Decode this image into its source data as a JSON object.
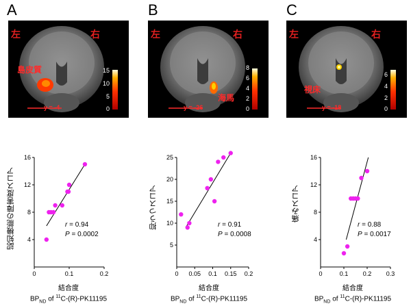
{
  "panels": [
    {
      "letter": "A",
      "left_label": "左",
      "right_label": "右",
      "region": "島皮質",
      "coord": "y = -4",
      "colorbar_ticks": [
        "15",
        "10",
        "5",
        "0"
      ],
      "ylabel": "認知機能の障害度スコア",
      "xlabel": "結合度",
      "xlabel_bp": "BP",
      "xlabel_sub": "ND",
      "xlabel_mid": " of ",
      "xlabel_sup": "11",
      "xlabel_tracer": "C-(R)-PK11195",
      "r_label": "r",
      "r_value": " = 0.94",
      "p_label": "P",
      "p_value": " = 0.0002"
    },
    {
      "letter": "B",
      "left_label": "左",
      "right_label": "右",
      "region": "海馬",
      "coord": "y = -26",
      "colorbar_ticks": [
        "8",
        "6",
        "4",
        "2",
        "0"
      ],
      "ylabel": "抑うつスコア",
      "xlabel": "結合度",
      "xlabel_bp": "BP",
      "xlabel_sub": "ND",
      "xlabel_mid": " of ",
      "xlabel_sup": "11",
      "xlabel_tracer": "C-(R)-PK11195",
      "r_label": "r",
      "r_value": " = 0.91",
      "p_label": "P",
      "p_value": " = 0.0008"
    },
    {
      "letter": "C",
      "left_label": "左",
      "right_label": "右",
      "region": "視床",
      "coord": "y = -18",
      "colorbar_ticks": [
        "6",
        "4",
        "2",
        "0"
      ],
      "ylabel": "痛みスコア",
      "xlabel": "結合度",
      "xlabel_bp": "BP",
      "xlabel_sub": "ND",
      "xlabel_mid": " of ",
      "xlabel_sup": "11",
      "xlabel_tracer": "C-(R)-PK11195",
      "r_label": "r",
      "r_value": " = 0.88",
      "p_label": "P",
      "p_value": " = 0.0017"
    }
  ],
  "colors": {
    "point": "#ee22ee",
    "label_red": "#e02020"
  },
  "chart_data": [
    {
      "type": "scatter",
      "title": "",
      "xlabel": "結合度 BPND of 11C-(R)-PK11195",
      "ylabel": "認知機能の障害度スコア",
      "xlim": [
        0,
        0.2
      ],
      "ylim": [
        0,
        16
      ],
      "xticks": [
        0,
        0.1,
        0.2
      ],
      "yticks": [
        4,
        8,
        12,
        16
      ],
      "x": [
        0.035,
        0.042,
        0.048,
        0.055,
        0.06,
        0.08,
        0.095,
        0.098,
        0.1,
        0.145
      ],
      "y": [
        4,
        8,
        8,
        8,
        9,
        9,
        11,
        11,
        12,
        15
      ],
      "fit": [
        [
          0.035,
          6
        ],
        [
          0.145,
          15
        ]
      ]
    },
    {
      "type": "scatter",
      "title": "",
      "xlabel": "結合度 BPND of 11C-(R)-PK11195",
      "ylabel": "抑うつスコア",
      "xlim": [
        0,
        0.2
      ],
      "ylim": [
        0,
        25
      ],
      "xticks": [
        0,
        0.05,
        0.1,
        0.15,
        0.2
      ],
      "yticks": [
        5,
        10,
        15,
        20,
        25
      ],
      "x": [
        0.012,
        0.03,
        0.035,
        0.085,
        0.095,
        0.105,
        0.115,
        0.13,
        0.15
      ],
      "y": [
        12,
        9,
        10,
        18,
        20,
        15,
        24,
        25,
        26
      ],
      "fit": [
        [
          0.025,
          9
        ],
        [
          0.15,
          26
        ]
      ]
    },
    {
      "type": "scatter",
      "title": "",
      "xlabel": "結合度 BPND of 11C-(R)-PK11195",
      "ylabel": "痛みスコア",
      "xlim": [
        0,
        0.3
      ],
      "ylim": [
        0,
        16
      ],
      "xticks": [
        0,
        0.1,
        0.2,
        0.3
      ],
      "yticks": [
        4,
        8,
        12,
        16
      ],
      "x": [
        0.1,
        0.115,
        0.13,
        0.14,
        0.15,
        0.16,
        0.175,
        0.2
      ],
      "y": [
        2,
        3,
        10,
        10,
        10,
        10,
        13,
        14
      ],
      "fit": [
        [
          0.11,
          4
        ],
        [
          0.205,
          16
        ]
      ]
    }
  ]
}
